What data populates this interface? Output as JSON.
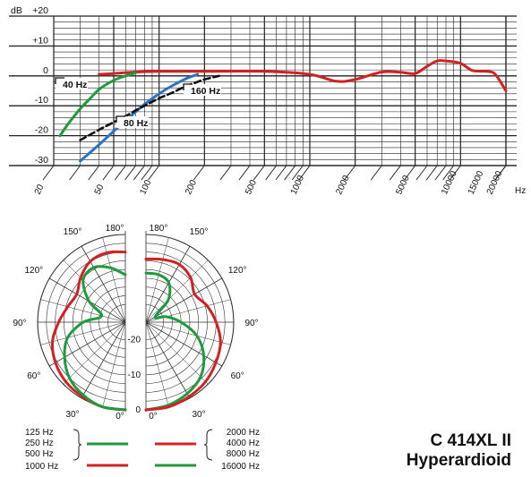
{
  "product": {
    "model": "C 414XL II",
    "pattern": "Hyperardioid"
  },
  "colors": {
    "red": "#d42020",
    "green": "#1f9a3c",
    "blue": "#2874c0",
    "black": "#111111",
    "grid": "#222222"
  },
  "chart_data": [
    {
      "type": "line",
      "title": "",
      "y_unit_label": "dB",
      "x_unit_label": "Hz",
      "ylim": [
        -30,
        20
      ],
      "xlim": [
        20,
        20000
      ],
      "x_scale": "log",
      "y_tick_labels": [
        "+20",
        "+10",
        "0",
        "-10",
        "-20",
        "-30"
      ],
      "x_tick_labels": [
        "20",
        "50",
        "100",
        "200",
        "500",
        "1000",
        "2000",
        "5000",
        "10000",
        "15000",
        "20000"
      ],
      "grid": true,
      "series": [
        {
          "color": "red",
          "style": "solid",
          "x": [
            40,
            50,
            70,
            100,
            200,
            500,
            1000,
            1500,
            2000,
            3000,
            4000,
            5000,
            6000,
            7000,
            8000,
            10000,
            12000,
            15000,
            17000,
            20000
          ],
          "y": [
            0.5,
            0.8,
            1.3,
            1.5,
            1.5,
            1.5,
            0.5,
            -1.8,
            -1.2,
            1.3,
            1.2,
            0.8,
            3.2,
            5,
            5,
            4.2,
            1.8,
            1.5,
            0.5,
            -5
          ]
        },
        {
          "color": "green",
          "style": "solid",
          "x": [
            22,
            25,
            30,
            35,
            40,
            50,
            60,
            70
          ],
          "y": [
            -20,
            -16,
            -11,
            -7.5,
            -4.5,
            -1.5,
            0,
            1
          ]
        },
        {
          "color": "blue",
          "style": "solid",
          "x": [
            30,
            40,
            50,
            60,
            70,
            80,
            100,
            120,
            150,
            180
          ],
          "y": [
            -28.5,
            -23,
            -18.5,
            -15,
            -12,
            -9.5,
            -6,
            -3.5,
            -1,
            0.5
          ]
        },
        {
          "color": "black",
          "style": "dashed",
          "x": [
            30,
            40,
            50,
            60,
            70,
            80,
            100,
            120,
            150,
            180,
            200,
            250
          ],
          "y": [
            -21.5,
            -18,
            -15.5,
            -13.5,
            -11.5,
            -10,
            -7.5,
            -5.8,
            -3.5,
            -2,
            -1.2,
            0
          ]
        }
      ],
      "annotations": [
        "40 Hz",
        "80 Hz",
        "160 Hz"
      ]
    },
    {
      "type": "polar",
      "angle_labels_left": [
        "180°",
        "150°",
        "120°",
        "90°",
        "60°",
        "30°",
        "0°"
      ],
      "angle_labels_right": [
        "180°",
        "150°",
        "120°",
        "90°",
        "60°",
        "30°",
        "0°"
      ],
      "radial_labels": [
        "0",
        "-10",
        "-20"
      ],
      "left_half": {
        "green": [
          0,
          0,
          -1,
          -2.5,
          -5,
          -8,
          -13,
          -18,
          -13,
          -8,
          -7,
          -9,
          -11.5
        ],
        "red": [
          0,
          0,
          -0.5,
          -1,
          -2,
          -3.5,
          -6,
          -8,
          -9,
          -7,
          -5,
          -4.5,
          -5
        ]
      },
      "right_half": {
        "red": [
          0,
          0,
          -0.5,
          -1,
          -2,
          -3,
          -5,
          -7,
          -9,
          -7,
          -6,
          -6.5,
          -7
        ],
        "green": [
          0,
          -0.5,
          -1.5,
          -3,
          -6,
          -10,
          -15,
          -19,
          -22,
          -16,
          -12,
          -11,
          -11
        ]
      },
      "legend": {
        "left_group": [
          "125 Hz",
          "250 Hz",
          "500 Hz"
        ],
        "left_group_color": "green",
        "left_single": "1000 Hz",
        "left_single_color": "red",
        "right_group": [
          "2000 Hz",
          "4000 Hz",
          "8000 Hz"
        ],
        "right_group_color": "red",
        "right_single": "16000 Hz",
        "right_single_color": "green"
      }
    }
  ]
}
